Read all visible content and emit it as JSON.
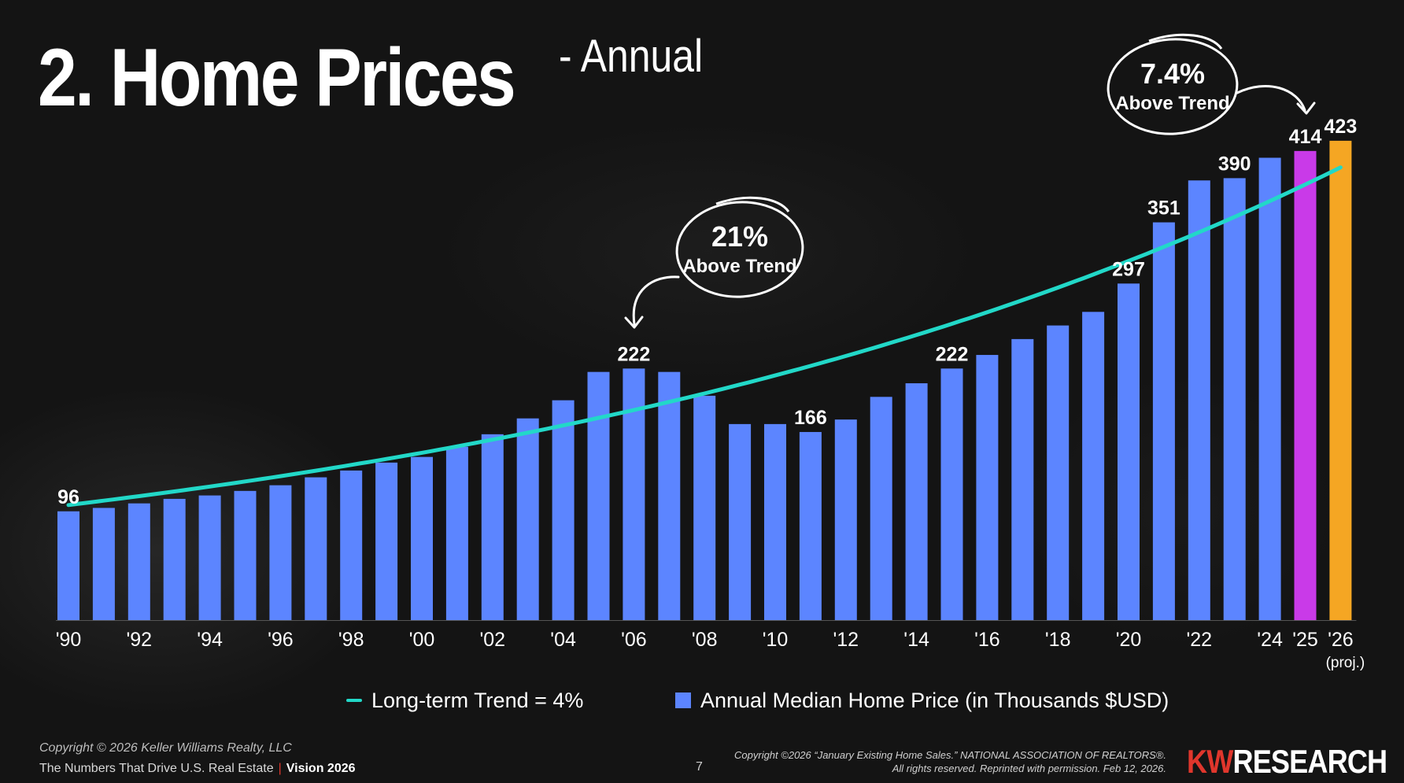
{
  "title": {
    "main": "2. Home Prices",
    "sub": "- Annual"
  },
  "colors": {
    "bar": "#5c85ff",
    "bar_2025": "#c93ae8",
    "bar_2026": "#f5a623",
    "trend": "#22d8c8",
    "brand": "#e0362c"
  },
  "chart_data": {
    "type": "bar",
    "categories": [
      "1990",
      "1991",
      "1992",
      "1993",
      "1994",
      "1995",
      "1996",
      "1997",
      "1998",
      "1999",
      "2000",
      "2001",
      "2002",
      "2003",
      "2004",
      "2005",
      "2006",
      "2007",
      "2008",
      "2009",
      "2010",
      "2011",
      "2012",
      "2013",
      "2014",
      "2015",
      "2016",
      "2017",
      "2018",
      "2019",
      "2020",
      "2021",
      "2022",
      "2023",
      "2024",
      "2025",
      "2026"
    ],
    "tick_labels": [
      "'90",
      "'92",
      "'94",
      "'96",
      "'98",
      "'00",
      "'02",
      "'04",
      "'06",
      "'08",
      "'10",
      "'12",
      "'14",
      "'16",
      "'18",
      "'20",
      "'22",
      "'24",
      "'25",
      "'26"
    ],
    "tick_sublabel": "(proj.)",
    "series": [
      {
        "name": "Annual Median Home Price (in Thousands $USD)",
        "values": [
          96,
          99,
          103,
          107,
          110,
          114,
          119,
          126,
          132,
          139,
          144,
          153,
          164,
          178,
          194,
          219,
          222,
          219,
          198,
          173,
          173,
          166,
          177,
          197,
          209,
          222,
          234,
          248,
          260,
          272,
          297,
          351,
          388,
          390,
          408,
          414,
          423
        ]
      }
    ],
    "trend": {
      "name": "Long-term Trend = 4%",
      "start_value": 96,
      "rate": 0.04
    },
    "data_labels": [
      {
        "category": "1990",
        "text": "96"
      },
      {
        "category": "2006",
        "text": "222"
      },
      {
        "category": "2011",
        "text": "166"
      },
      {
        "category": "2015",
        "text": "222"
      },
      {
        "category": "2020",
        "text": "297"
      },
      {
        "category": "2021",
        "text": "351"
      },
      {
        "category": "2023",
        "text": "390"
      },
      {
        "category": "2025",
        "text": "414"
      },
      {
        "category": "2026",
        "text": "423"
      }
    ],
    "annotations": [
      {
        "pct": "21%",
        "text": "Above Trend",
        "target_category": "2006"
      },
      {
        "pct": "7.4%",
        "text": "Above Trend",
        "target_category": "2025"
      }
    ],
    "ylim": [
      0,
      440
    ],
    "grid": false,
    "legend_position": "bottom"
  },
  "legend": {
    "trend_label": "Long-term Trend = 4%",
    "bar_label": "Annual Median Home Price (in Thousands $USD)"
  },
  "footer": {
    "copyright": "Copyright © 2026 Keller Williams Realty, LLC",
    "series_title": "The Numbers That Drive U.S. Real Estate",
    "separator": "|",
    "vision": "Vision 2026",
    "page": "7",
    "source_line1": "Copyright ©2026 “January Existing Home Sales.” NATIONAL ASSOCIATION OF REALTORS®.",
    "source_line2": "All rights reserved. Reprinted with permission. Feb 12, 2026.",
    "brand_kw": "KW",
    "brand_research": "RESEARCH"
  }
}
